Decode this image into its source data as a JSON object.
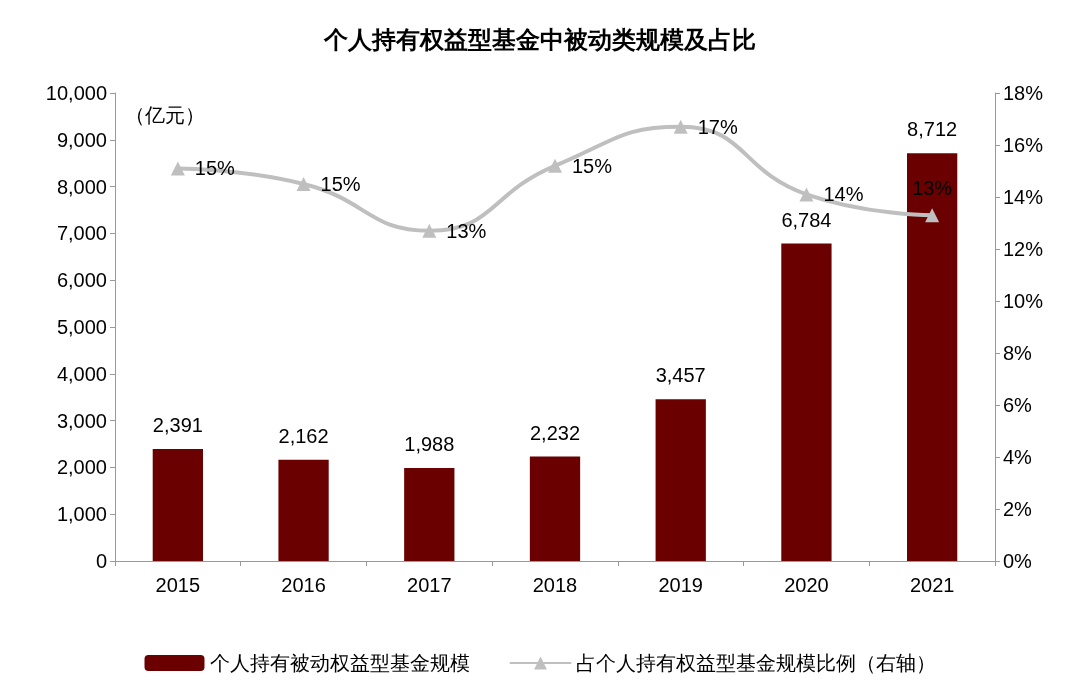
{
  "chart_data": {
    "type": "bar",
    "title": "个人持有权益型基金中被动类规模及占比",
    "ylabel": "（亿元）",
    "categories": [
      "2015",
      "2016",
      "2017",
      "2018",
      "2019",
      "2020",
      "2021"
    ],
    "series": [
      {
        "name": "个人持有被动权益型基金规模",
        "color": "#6b0000",
        "values": [
          2391,
          2162,
          1988,
          2232,
          3457,
          6784,
          8712
        ],
        "value_labels": [
          "2,391",
          "2,162",
          "1,988",
          "2,232",
          "3,457",
          "6,784",
          "8,712"
        ]
      },
      {
        "name": "占个人持有权益型基金规模比例（右轴）",
        "type": "line",
        "axis": "y2",
        "color": "#bfbfbf",
        "marker": "triangle",
        "values": [
          15.1,
          14.5,
          12.7,
          15.2,
          16.7,
          14.1,
          13.3
        ],
        "value_labels": [
          "15%",
          "15%",
          "13%",
          "15%",
          "17%",
          "14%",
          "13%"
        ]
      }
    ],
    "ylim": [
      0,
      10000
    ],
    "yticks": [
      {
        "value": 0,
        "label": "0"
      },
      {
        "value": 1000,
        "label": "1,000"
      },
      {
        "value": 2000,
        "label": "2,000"
      },
      {
        "value": 3000,
        "label": "3,000"
      },
      {
        "value": 4000,
        "label": "4,000"
      },
      {
        "value": 5000,
        "label": "5,000"
      },
      {
        "value": 6000,
        "label": "6,000"
      },
      {
        "value": 7000,
        "label": "7,000"
      },
      {
        "value": 8000,
        "label": "8,000"
      },
      {
        "value": 9000,
        "label": "9,000"
      },
      {
        "value": 10000,
        "label": "10,000"
      }
    ],
    "y2lim": [
      0,
      18
    ],
    "y2ticks": [
      {
        "value": 0,
        "label": "0%"
      },
      {
        "value": 2,
        "label": "2%"
      },
      {
        "value": 4,
        "label": "4%"
      },
      {
        "value": 6,
        "label": "6%"
      },
      {
        "value": 8,
        "label": "8%"
      },
      {
        "value": 10,
        "label": "10%"
      },
      {
        "value": 12,
        "label": "12%"
      },
      {
        "value": 14,
        "label": "14%"
      },
      {
        "value": 16,
        "label": "16%"
      },
      {
        "value": 18,
        "label": "18%"
      }
    ],
    "grid": false,
    "legend": "bottom"
  }
}
